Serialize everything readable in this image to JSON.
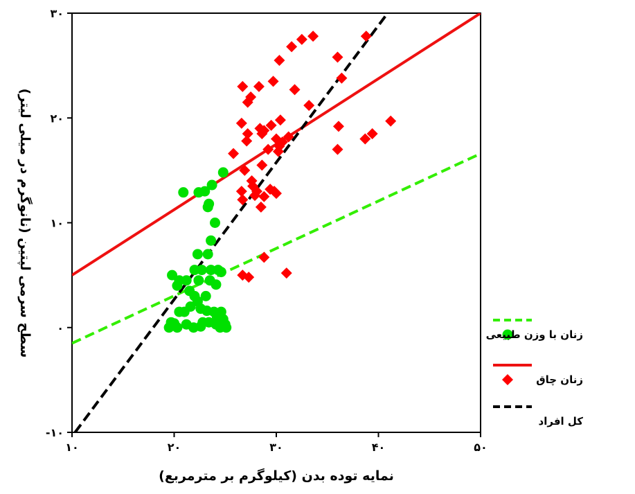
{
  "chart_data": {
    "type": "scatter",
    "xlabel": "نمایه توده بدن (کیلوگرم بر مترمربع)",
    "ylabel": "سطح سرمی لپتین (نانوگرم در میلی لیتر)",
    "xlim": [
      10,
      50
    ],
    "ylim": [
      -10,
      30
    ],
    "x_ticks": [
      10,
      20,
      30,
      40,
      50
    ],
    "x_tick_labels": [
      "۱۰",
      "۲۰",
      "۳۰",
      "۴۰",
      "۵۰"
    ],
    "y_ticks": [
      -10,
      0,
      10,
      20,
      30
    ],
    "y_tick_labels": [
      "-۱۰",
      "۰",
      "۱۰",
      "۲۰",
      "۳۰"
    ],
    "grid": false,
    "legend_position": "right",
    "series": [
      {
        "name": "زنان با وزن طبیعی",
        "marker": "circle",
        "color": "#00e000",
        "points": [
          [
            20.9,
            12.9
          ],
          [
            22.4,
            12.9
          ],
          [
            23.0,
            13.0
          ],
          [
            23.7,
            13.6
          ],
          [
            24.8,
            14.8
          ],
          [
            23.4,
            11.8
          ],
          [
            23.3,
            11.5
          ],
          [
            24.0,
            10.0
          ],
          [
            23.6,
            8.3
          ],
          [
            23.3,
            7.0
          ],
          [
            22.3,
            7.0
          ],
          [
            22.0,
            5.5
          ],
          [
            22.7,
            5.5
          ],
          [
            23.6,
            5.5
          ],
          [
            24.3,
            5.5
          ],
          [
            24.6,
            5.3
          ],
          [
            19.8,
            5.0
          ],
          [
            20.5,
            4.5
          ],
          [
            21.2,
            4.5
          ],
          [
            22.4,
            4.5
          ],
          [
            23.5,
            4.5
          ],
          [
            24.1,
            4.1
          ],
          [
            20.3,
            4.0
          ],
          [
            21.5,
            3.5
          ],
          [
            22.0,
            3.0
          ],
          [
            23.1,
            3.0
          ],
          [
            22.3,
            2.5
          ],
          [
            21.6,
            2.0
          ],
          [
            21.0,
            1.5
          ],
          [
            20.5,
            1.5
          ],
          [
            22.6,
            1.8
          ],
          [
            23.2,
            1.6
          ],
          [
            24.6,
            1.5
          ],
          [
            23.9,
            1.5
          ],
          [
            24.2,
            1.0
          ],
          [
            24.8,
            0.8
          ],
          [
            22.8,
            0.5
          ],
          [
            23.4,
            0.5
          ],
          [
            24.1,
            0.3
          ],
          [
            25.0,
            0.3
          ],
          [
            19.7,
            0.5
          ],
          [
            20.3,
            0.0
          ],
          [
            21.2,
            0.3
          ],
          [
            21.9,
            0.0
          ],
          [
            22.6,
            0.1
          ],
          [
            24.5,
            0.0
          ],
          [
            25.1,
            0.0
          ],
          [
            19.5,
            0.0
          ],
          [
            20.0,
            0.4
          ]
        ]
      },
      {
        "name": "زنان چاق",
        "marker": "diamond",
        "color": "#ff0000",
        "points": [
          [
            26.7,
            23.0
          ],
          [
            27.2,
            21.5
          ],
          [
            28.3,
            23.0
          ],
          [
            29.7,
            23.5
          ],
          [
            27.5,
            22.0
          ],
          [
            30.3,
            25.5
          ],
          [
            31.5,
            26.8
          ],
          [
            32.5,
            27.5
          ],
          [
            33.6,
            27.8
          ],
          [
            36.0,
            25.8
          ],
          [
            38.8,
            27.8
          ],
          [
            31.8,
            22.7
          ],
          [
            33.2,
            21.2
          ],
          [
            36.4,
            23.8
          ],
          [
            26.6,
            19.5
          ],
          [
            27.2,
            18.5
          ],
          [
            27.1,
            17.8
          ],
          [
            28.4,
            19.0
          ],
          [
            28.8,
            18.8
          ],
          [
            29.5,
            19.3
          ],
          [
            30.4,
            19.8
          ],
          [
            30.0,
            18.0
          ],
          [
            30.3,
            17.3
          ],
          [
            30.6,
            17.7
          ],
          [
            31.2,
            18.2
          ],
          [
            28.6,
            18.5
          ],
          [
            29.2,
            17.0
          ],
          [
            30.2,
            16.8
          ],
          [
            36.1,
            19.2
          ],
          [
            36.0,
            17.0
          ],
          [
            38.7,
            18.0
          ],
          [
            39.4,
            18.5
          ],
          [
            41.2,
            19.7
          ],
          [
            25.8,
            16.6
          ],
          [
            26.9,
            15.0
          ],
          [
            27.6,
            14.0
          ],
          [
            28.6,
            15.5
          ],
          [
            26.6,
            13.0
          ],
          [
            27.7,
            13.5
          ],
          [
            28.1,
            13.0
          ],
          [
            27.9,
            12.6
          ],
          [
            28.8,
            12.5
          ],
          [
            29.4,
            13.2
          ],
          [
            29.8,
            13.0
          ],
          [
            30.0,
            12.8
          ],
          [
            26.7,
            12.2
          ],
          [
            28.5,
            11.5
          ],
          [
            26.7,
            5.0
          ],
          [
            27.3,
            4.8
          ],
          [
            28.8,
            6.7
          ],
          [
            31.0,
            5.2
          ]
        ]
      }
    ],
    "lines": [
      {
        "name": "زنان با وزن طبیعی",
        "color": "#33ee00",
        "dash": "dashed",
        "from": [
          10,
          -1.5
        ],
        "to": [
          50,
          16.6
        ]
      },
      {
        "name": "زنان چاق",
        "color": "#ee1111",
        "dash": "solid",
        "from": [
          10,
          5.0
        ],
        "to": [
          50,
          30.0
        ]
      },
      {
        "name": "کل افراد",
        "color": "#000000",
        "dash": "dashed",
        "from": [
          10.3,
          -10
        ],
        "to": [
          40.9,
          30
        ]
      }
    ]
  }
}
